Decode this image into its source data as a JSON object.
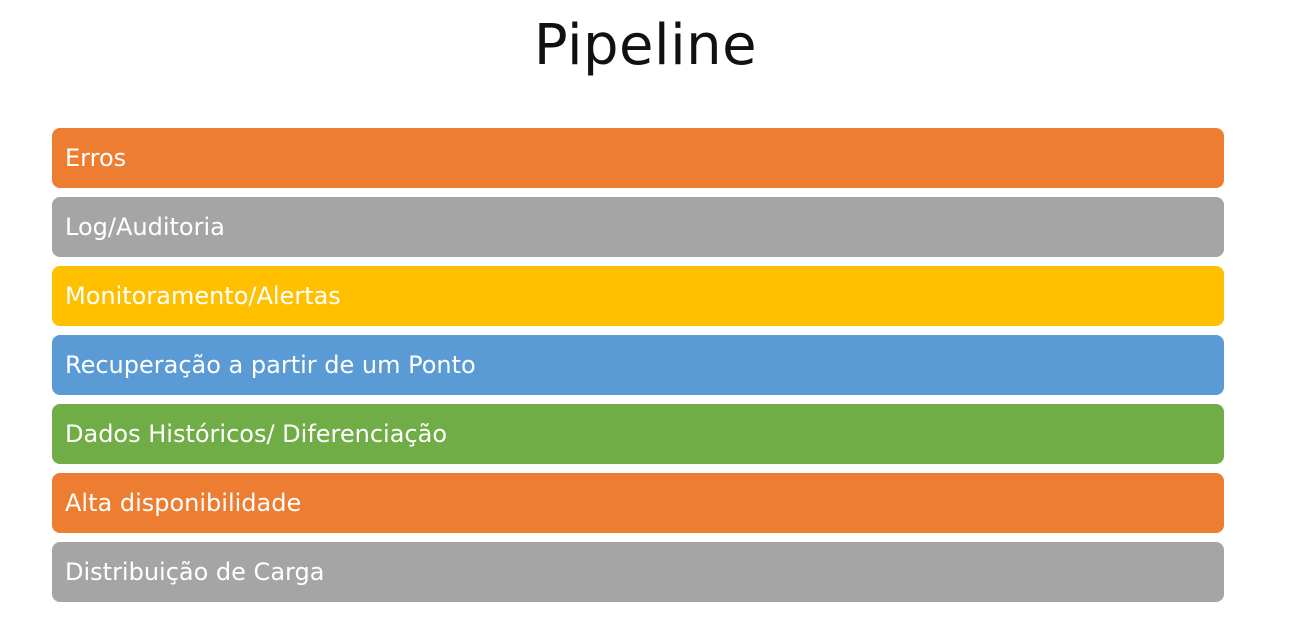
{
  "title": "Pipeline",
  "items": [
    {
      "label": "Erros",
      "color": "#ED7D31"
    },
    {
      "label": "Log/Auditoria",
      "color": "#A5A5A5"
    },
    {
      "label": "Monitoramento/Alertas",
      "color": "#FFC000"
    },
    {
      "label": "Recuperação a partir de um Ponto",
      "color": "#5B9BD5"
    },
    {
      "label": "Dados Históricos/ Diferenciação",
      "color": "#70AD47"
    },
    {
      "label": "Alta disponibilidade",
      "color": "#ED7D31"
    },
    {
      "label": "Distribuição de Carga",
      "color": "#A5A5A5"
    }
  ]
}
